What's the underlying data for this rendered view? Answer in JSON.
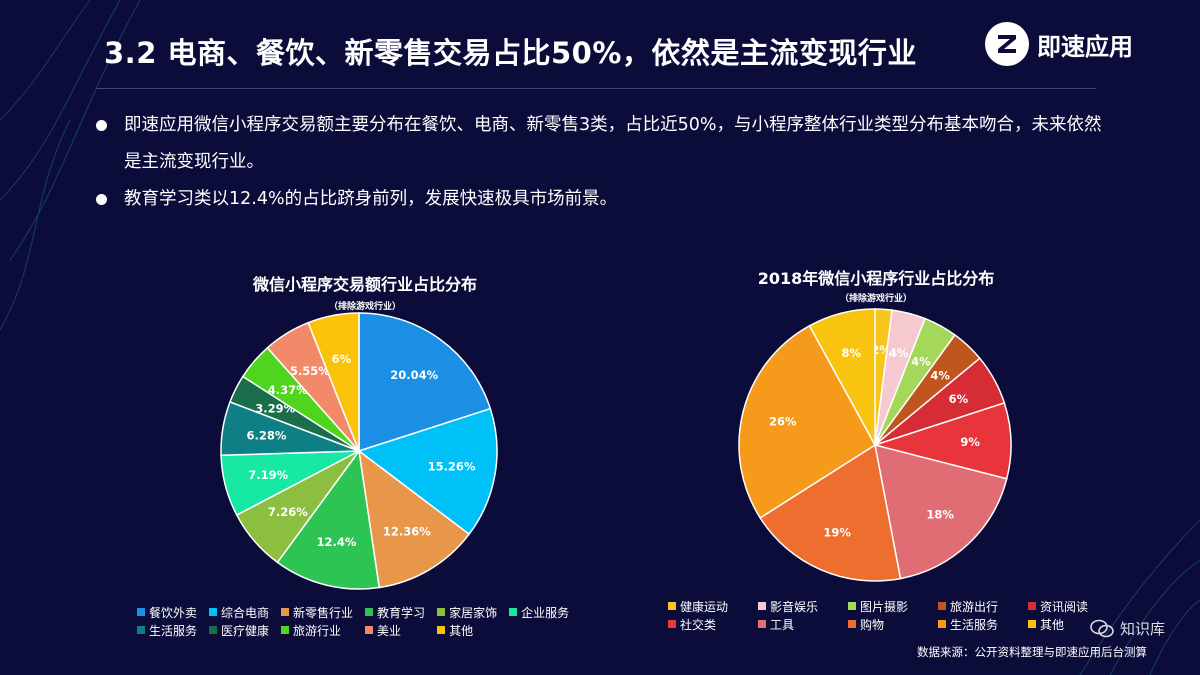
{
  "title": "3.2 电商、餐饮、新零售交易占比50%，依然是主流变现行业",
  "logo_text": "即速应用",
  "bullets": [
    "即速应用微信小程序交易额主要分布在餐饮、电商、新零售3类，占比近50%，与小程序整体行业类型分布基本吻合，未来依然是主流变现行业。",
    "教育学习类以12.4%的占比跻身前列，发展快速极具市场前景。"
  ],
  "source": "数据来源：公开资料整理与即速应用后台测算",
  "watermark": "知识库",
  "chart_data": [
    {
      "type": "pie",
      "title": "微信小程序交易额行业占比分布",
      "subtitle": "（排除游戏行业）",
      "categories": [
        "餐饮外卖",
        "综合电商",
        "新零售行业",
        "教育学习",
        "家居家饰",
        "企业服务",
        "生活服务",
        "医疗健康",
        "旅游行业",
        "美业",
        "其他"
      ],
      "values": [
        20.04,
        15.26,
        12.36,
        12.4,
        7.26,
        7.19,
        6.28,
        3.29,
        4.37,
        5.55,
        6
      ],
      "labels": [
        "20.04%",
        "15.26%",
        "12.36%",
        "12.4%",
        "7.26%",
        "7.19%",
        "6.28%",
        "3.29%",
        "4.37%",
        "5.55%",
        "6%"
      ],
      "colors": [
        "#1a8fe3",
        "#00c0f8",
        "#e8964a",
        "#2ec453",
        "#8cbf3f",
        "#17e8a4",
        "#0f7f86",
        "#1a6e4c",
        "#4fd51e",
        "#f28a6a",
        "#fbc20b"
      ],
      "legend_position": "bottom"
    },
    {
      "type": "pie",
      "title": "2018年微信小程序行业占比分布",
      "subtitle": "（排除游戏行业）",
      "categories": [
        "健康运动",
        "影音娱乐",
        "图片摄影",
        "旅游出行",
        "资讯阅读",
        "社交类",
        "工具",
        "购物",
        "生活服务",
        "其他"
      ],
      "values": [
        2,
        4,
        4,
        4,
        6,
        9,
        18,
        19,
        26,
        8
      ],
      "labels": [
        "2%",
        "4%",
        "4%",
        "4%",
        "6%",
        "9%",
        "18%",
        "19%",
        "26%",
        "8%"
      ],
      "colors": [
        "#f7c51e",
        "#f6c8cf",
        "#a4d75a",
        "#c1551e",
        "#d52c36",
        "#e8353c",
        "#e06d74",
        "#ee6e30",
        "#f59a1a",
        "#f8c410"
      ],
      "legend_position": "bottom"
    }
  ]
}
